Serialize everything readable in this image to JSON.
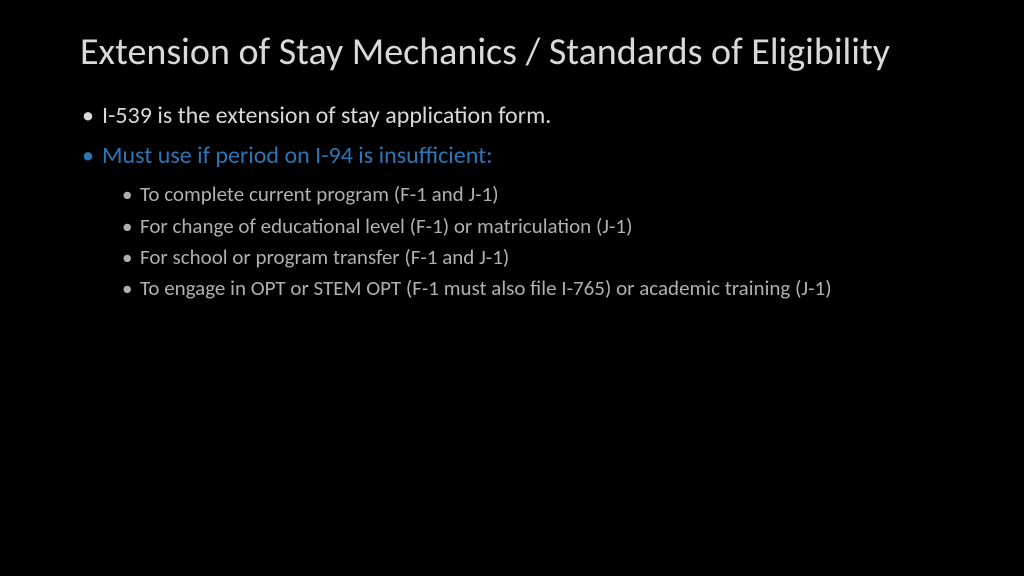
{
  "title": "Extension of Stay Mechanics / Standards of Eligibility",
  "bullets": {
    "item1": "I-539 is the extension of stay application form.",
    "item2": "Must use if period on I-94 is insufficient:",
    "sub1": "To complete current program (F-1 and J-1)",
    "sub2": "For change of educational level (F-1) or matriculation (J-1)",
    "sub3": "For school or program transfer (F-1 and J-1)",
    "sub4": "To engage in OPT or STEM OPT (F-1 must also file I-765) or academic training (J-1)"
  },
  "colors": {
    "background": "#000000",
    "title_text": "#d9d9d9",
    "body_text": "#d9d9d9",
    "sub_text": "#b0b0b0",
    "accent_text": "#2e75b6"
  },
  "typography": {
    "title_fontsize": 38,
    "body_fontsize": 24,
    "sub_fontsize": 21,
    "font_family": "Segoe UI"
  }
}
